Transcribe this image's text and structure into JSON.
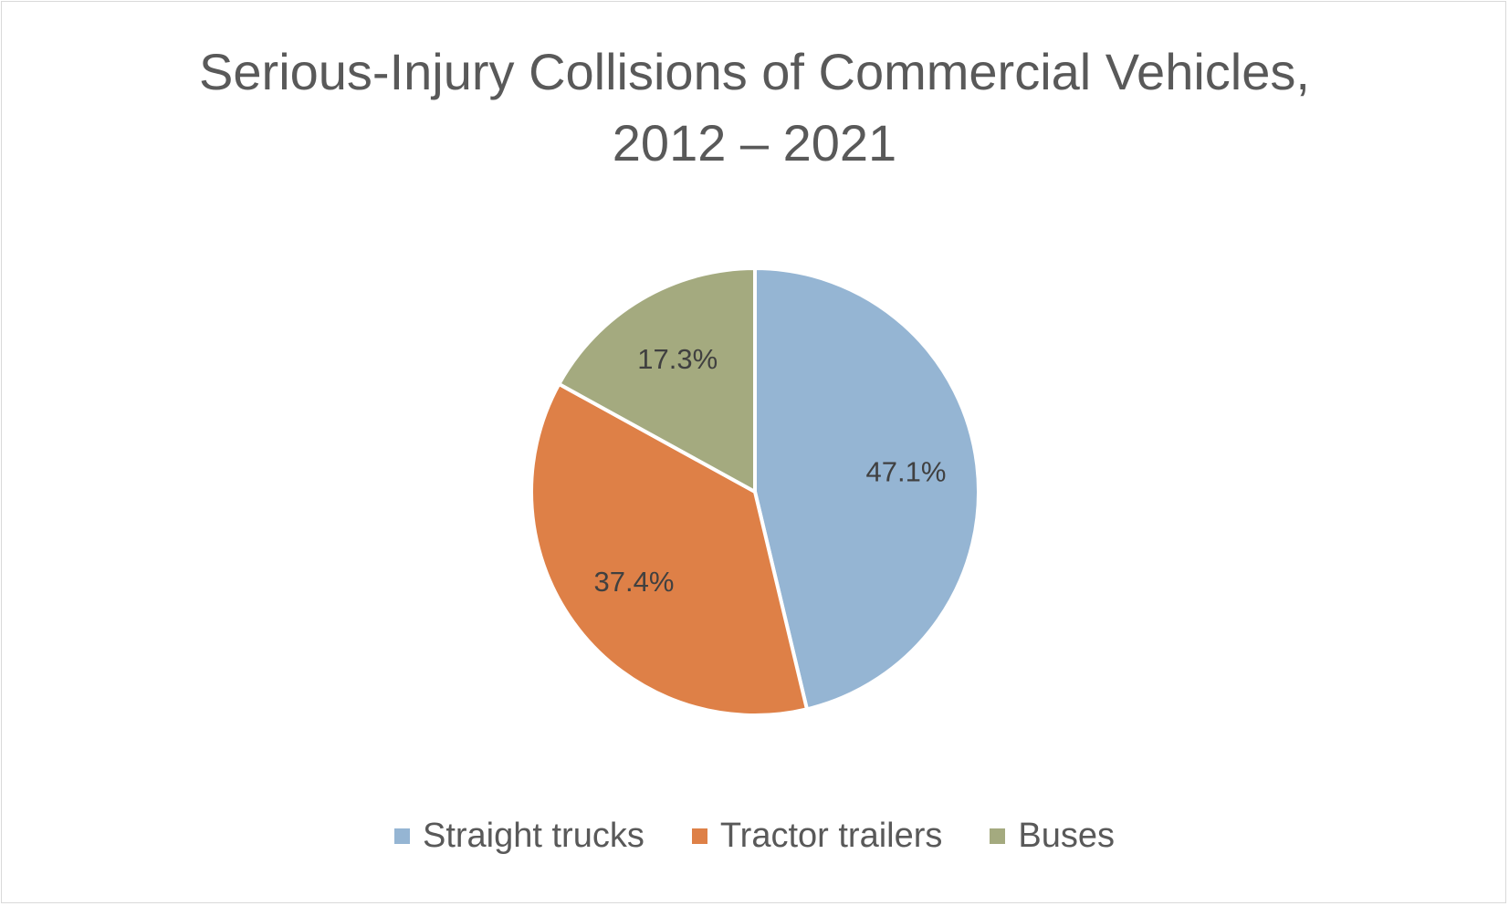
{
  "chart_data": {
    "type": "pie",
    "title_lines": [
      "Serious-Injury Collisions of Commercial Vehicles,",
      "2012 – 2021"
    ],
    "categories": [
      "Straight trucks",
      "Tractor trailers",
      "Buses"
    ],
    "values": [
      47.1,
      37.4,
      17.3
    ],
    "data_labels": [
      "47.1%",
      "37.4%",
      "17.3%"
    ],
    "colors": [
      "#95b5d3",
      "#de8047",
      "#a4aa7f"
    ],
    "start_angle_deg": 0,
    "direction": "clockwise",
    "legend_position": "bottom"
  }
}
